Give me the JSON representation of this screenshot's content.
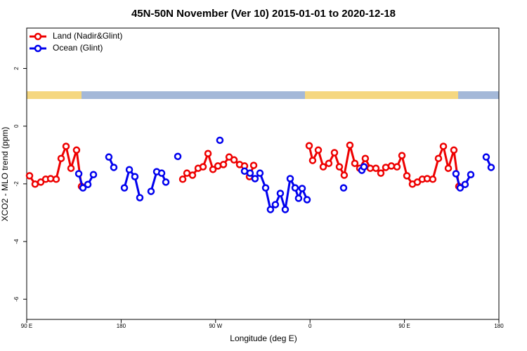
{
  "chart_data": {
    "type": "line",
    "title": "45N-50N November (Ver 10)   2015-01-01 to 2020-12-18",
    "x_label": "Longitude (deg E)",
    "y_label": "XCO2 - MLO trend (ppm)",
    "xlim": [
      90,
      540
    ],
    "ylim": [
      -6.7,
      3.4
    ],
    "xticks": [
      {
        "value": 90,
        "label": "90 E"
      },
      180,
      {
        "value": 270,
        "label": "90 W"
      },
      {
        "value": 360,
        "label": "0"
      },
      {
        "value": 450,
        "label": "90 E"
      },
      {
        "value": 540,
        "label": "180"
      }
    ],
    "yticks": [
      -6,
      -4,
      -2,
      0,
      2
    ],
    "legend": "upper left",
    "series": [
      {
        "name": "Land (Nadir&Glint)",
        "color": "#ee0000",
        "x": [
          92.7,
          98.0,
          103.4,
          108.1,
          112.8,
          118.1,
          122.8,
          127.5,
          132.2,
          137.5,
          142.2,
          null,
          238.7,
          242.7,
          248.0,
          253.4,
          258.1,
          262.8,
          267.5,
          272.2,
          277.5,
          282.9,
          287.6,
          292.9,
          297.6,
          302.3,
          306.3,
          null,
          359.2,
          362.5,
          367.9,
          372.6,
          377.9,
          383.3,
          388.0,
          392.6,
          398.0,
          402.7,
          407.4,
          412.7,
          417.4,
          422.8,
          427.5,
          432.2,
          437.5,
          442.9,
          447.6,
          452.3,
          457.6,
          462.3,
          467.0,
          471.7,
          477.0,
          482.4,
          487.1,
          491.8,
          497.1,
          501.8
        ],
        "values": [
          -1.72,
          -2.01,
          -1.94,
          -1.84,
          -1.82,
          -1.84,
          -1.12,
          -0.7,
          -1.46,
          -0.83,
          -2.09,
          null,
          -1.84,
          -1.63,
          -1.7,
          -1.46,
          -1.41,
          -0.95,
          -1.5,
          -1.38,
          -1.33,
          -1.07,
          -1.17,
          -1.33,
          -1.38,
          -1.75,
          -1.36,
          null,
          -0.68,
          -1.19,
          -0.83,
          -1.41,
          -1.29,
          -0.92,
          -1.41,
          -1.7,
          -0.66,
          -1.29,
          -1.46,
          -1.12,
          -1.46,
          -1.46,
          -1.63,
          -1.43,
          -1.38,
          -1.41,
          -1.02,
          -1.72,
          -2.01,
          -1.94,
          -1.84,
          -1.82,
          -1.84,
          -1.12,
          -0.7,
          -1.46,
          -0.83,
          -2.09
        ]
      },
      {
        "name": "Ocean (Glint)",
        "color": "#0000ee",
        "x": [
          139.6,
          143.6,
          148.3,
          153.6,
          null,
          168.3,
          173.0,
          null,
          183.1,
          187.8,
          193.1,
          197.8,
          null,
          208.5,
          213.9,
          218.6,
          222.6,
          null,
          234.0,
          null,
          274.1,
          null,
          297.6,
          302.9,
          307.6,
          312.3,
          317.7,
          322.3,
          327.0,
          331.7,
          336.4,
          341.1,
          345.8,
          349.1,
          352.5,
          357.2,
          null,
          392.0,
          null,
          409.4,
          411.4,
          null,
          499.1,
          503.1,
          507.8,
          513.2,
          null,
          527.9,
          532.6
        ],
        "values": [
          -1.65,
          -2.14,
          -2.02,
          -1.68,
          null,
          -1.07,
          -1.43,
          null,
          -2.14,
          -1.51,
          -1.75,
          -2.48,
          null,
          -2.26,
          -1.58,
          -1.63,
          -1.94,
          null,
          -1.05,
          null,
          -0.49,
          null,
          -1.56,
          -1.63,
          -1.82,
          -1.63,
          -2.14,
          -2.89,
          -2.72,
          -2.33,
          -2.89,
          -1.82,
          -2.14,
          -2.5,
          -2.16,
          -2.55,
          null,
          -2.14,
          null,
          -1.53,
          -1.41,
          null,
          -1.65,
          -2.14,
          -2.02,
          -1.68,
          null,
          -1.07,
          -1.43
        ]
      }
    ]
  }
}
